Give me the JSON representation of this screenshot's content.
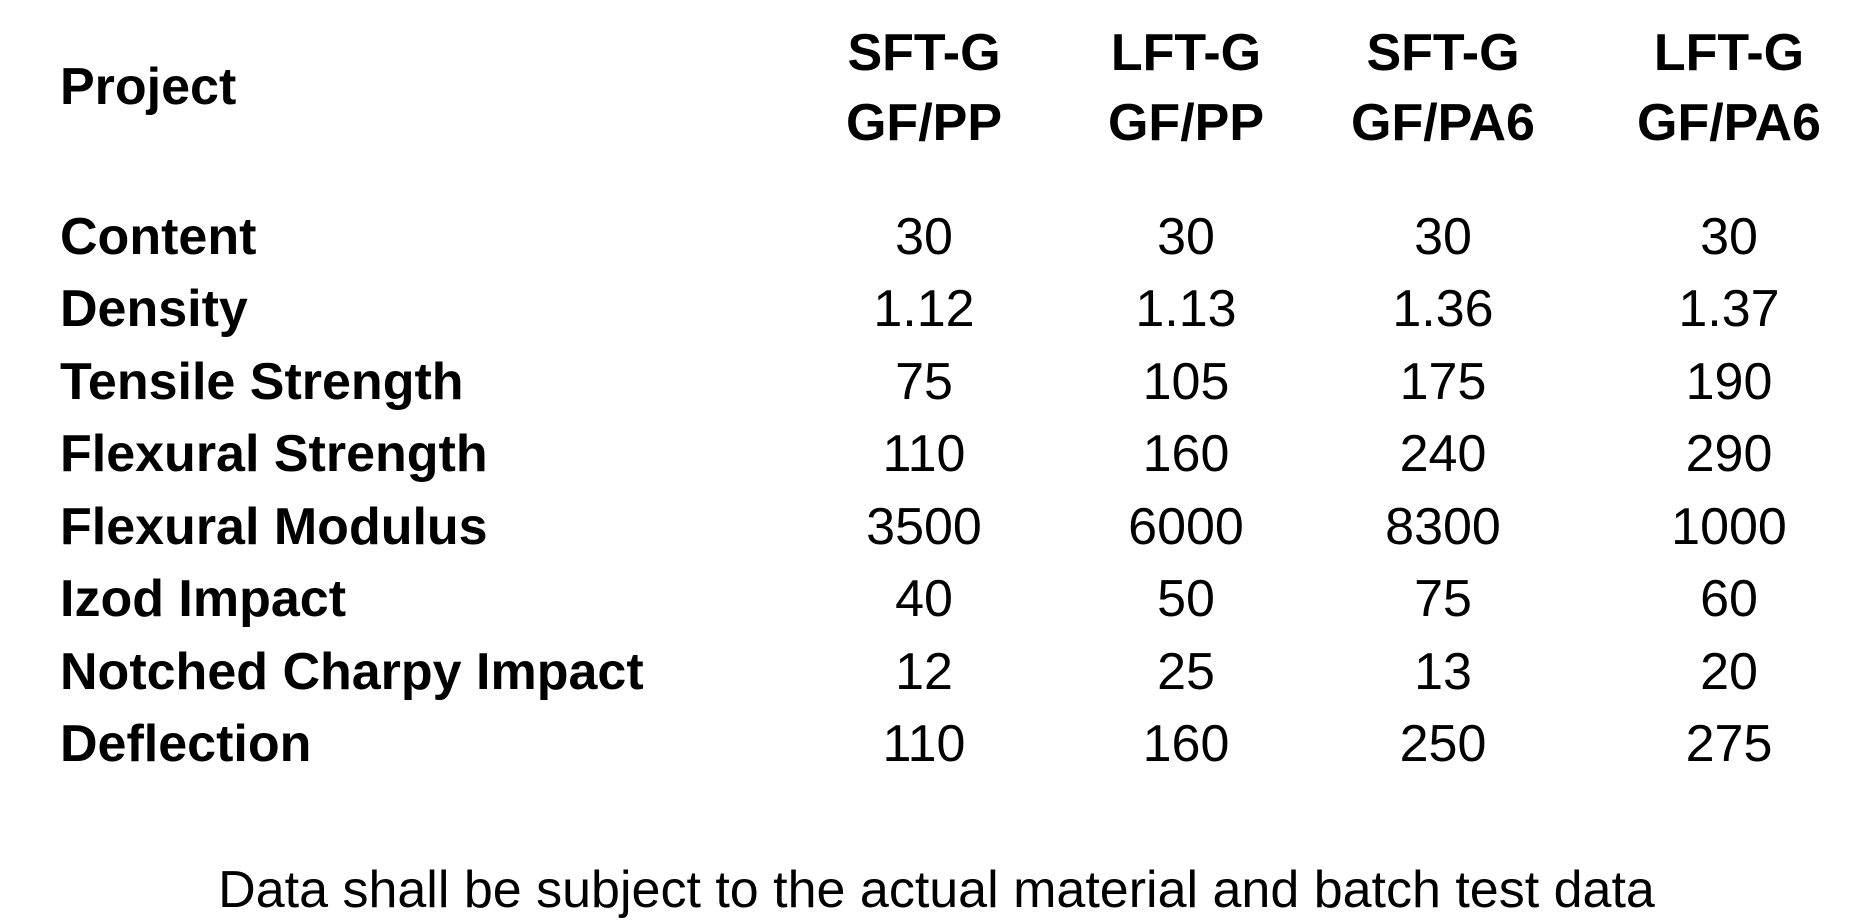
{
  "table": {
    "corner_label": "Project",
    "columns": [
      {
        "line1": "SFT-G",
        "line2": "GF/PP"
      },
      {
        "line1": "LFT-G",
        "line2": "GF/PP"
      },
      {
        "line1": "SFT-G",
        "line2": "GF/PA6"
      },
      {
        "line1": "LFT-G",
        "line2": "GF/PA6"
      }
    ],
    "rows": [
      {
        "label": "Content",
        "values": [
          "30",
          "30",
          "30",
          "30"
        ]
      },
      {
        "label": "Density",
        "values": [
          "1.12",
          "1.13",
          "1.36",
          "1.37"
        ]
      },
      {
        "label": "Tensile Strength",
        "values": [
          "75",
          "105",
          "175",
          "190"
        ]
      },
      {
        "label": "Flexural Strength",
        "values": [
          "110",
          "160",
          "240",
          "290"
        ]
      },
      {
        "label": "Flexural Modulus",
        "values": [
          "3500",
          "6000",
          "8300",
          "1000"
        ]
      },
      {
        "label": "Izod Impact",
        "values": [
          "40",
          "50",
          "75",
          "60"
        ]
      },
      {
        "label": "Notched Charpy Impact",
        "values": [
          "12",
          "25",
          "13",
          "20"
        ]
      },
      {
        "label": "Deflection",
        "values": [
          "110",
          "160",
          "250",
          "275"
        ]
      }
    ]
  },
  "footnote": "Data shall be subject to the actual material and batch test data"
}
